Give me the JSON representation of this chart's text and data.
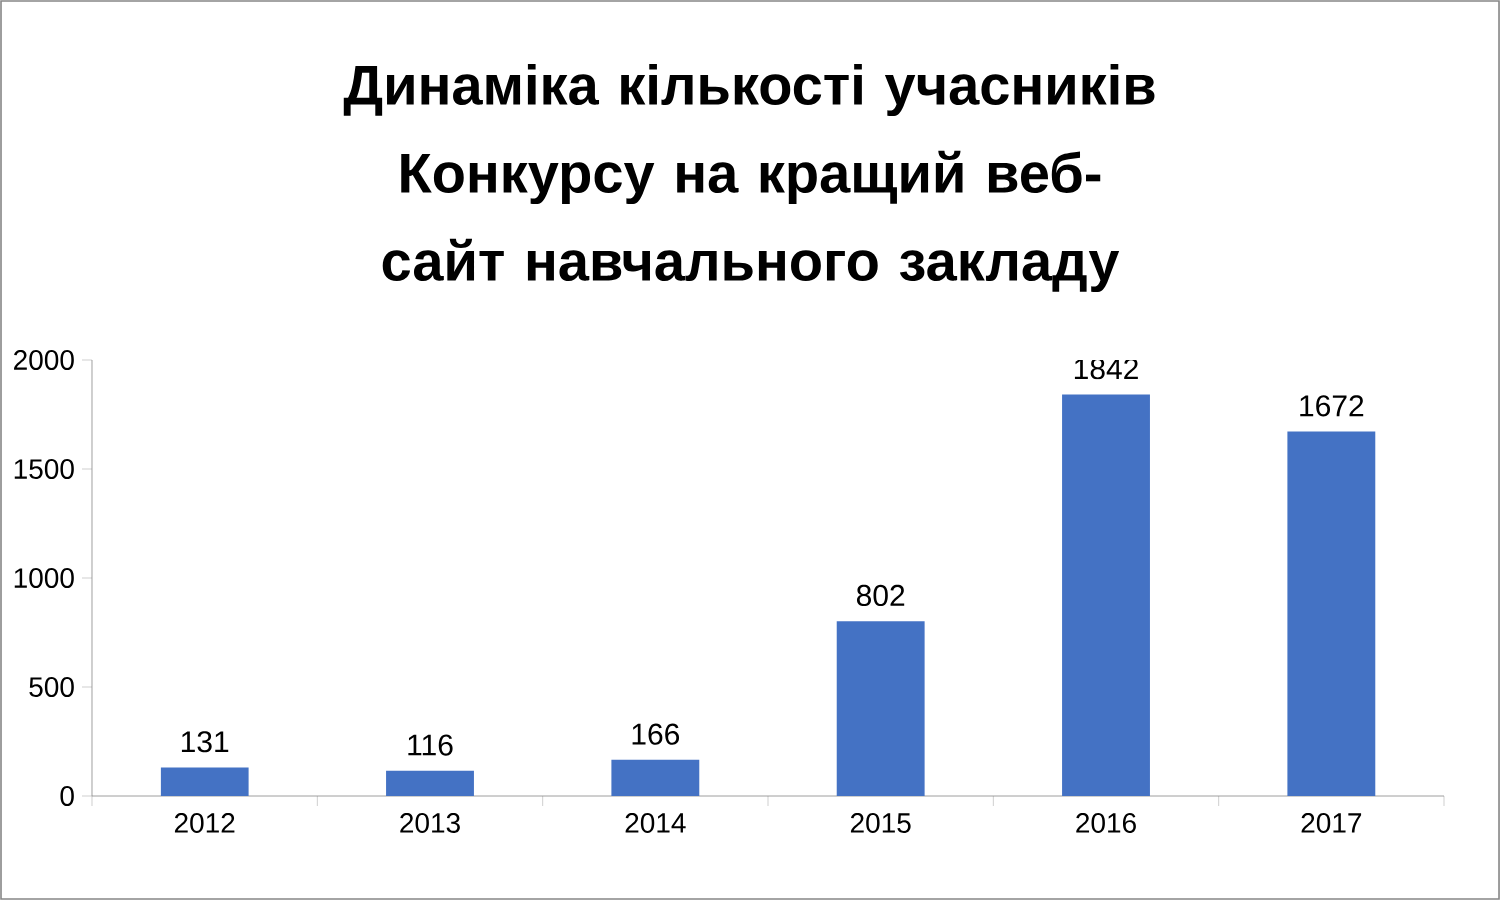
{
  "chart_data": {
    "type": "bar",
    "title": "Динаміка кількості учасників Конкурсу на кращий веб-сайт навчального закладу",
    "categories": [
      "2012",
      "2013",
      "2014",
      "2015",
      "2016",
      "2017"
    ],
    "values": [
      131,
      116,
      166,
      802,
      1842,
      1672
    ],
    "color": "#4472c4",
    "ylim": [
      0,
      2000
    ],
    "yticks": [
      0,
      500,
      1000,
      1500,
      2000
    ],
    "data_labels": true,
    "grid": false
  }
}
